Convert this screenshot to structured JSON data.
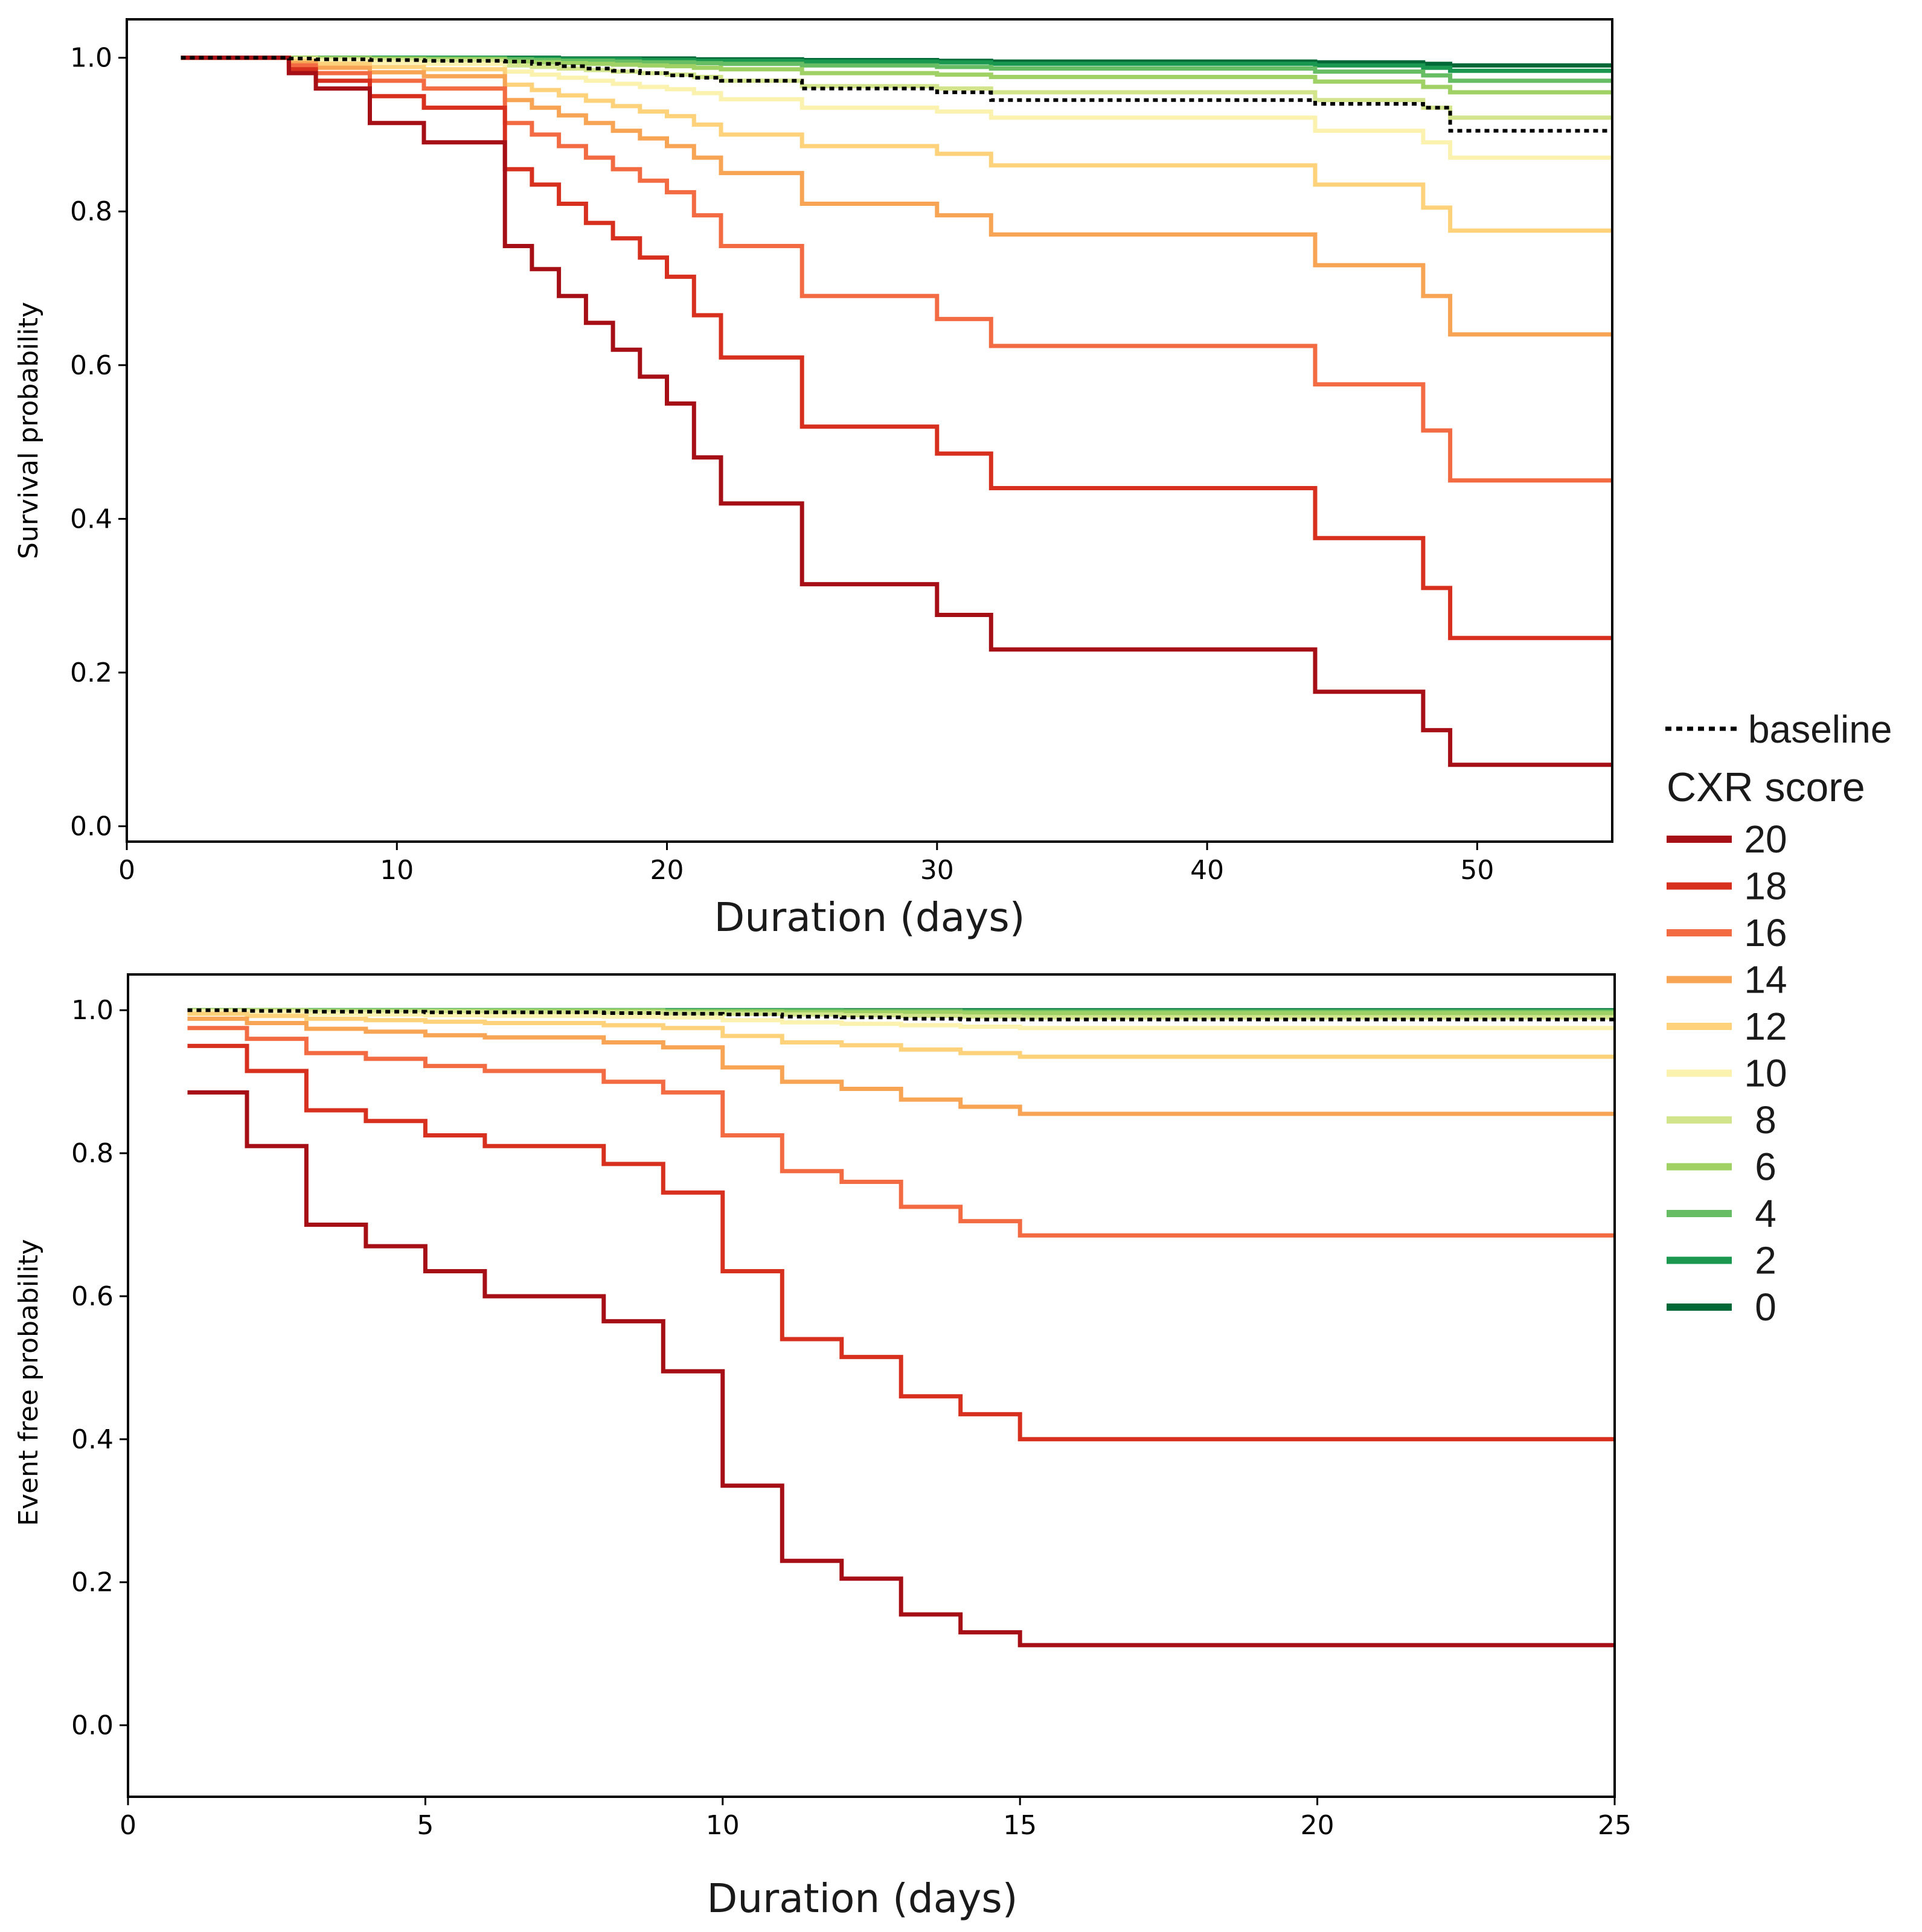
{
  "chart_data": [
    {
      "type": "line",
      "step": true,
      "xlabel": "Duration (days)",
      "ylabel": "Survival probability",
      "xlim": [
        0,
        55
      ],
      "ylim": [
        -0.02,
        1.05
      ],
      "xticks": [
        0,
        10,
        20,
        30,
        40,
        50
      ],
      "xtick_labels": [
        "0",
        "10",
        "20",
        "30",
        "40",
        "50"
      ],
      "yticks": [
        0.0,
        0.2,
        0.4,
        0.6,
        0.8,
        1.0
      ],
      "ytick_labels": [
        "0.0",
        "0.2",
        "0.4",
        "0.6",
        "0.8",
        "1.0"
      ],
      "x": [
        2,
        6,
        7,
        9,
        11,
        14,
        15,
        16,
        17,
        18,
        19,
        20,
        21,
        22,
        25,
        30,
        32,
        44,
        48,
        49,
        55
      ],
      "series": [
        {
          "name": "baseline",
          "color": "#000000",
          "dashed": true,
          "values": [
            1.0,
            0.999,
            0.998,
            0.997,
            0.996,
            0.995,
            0.992,
            0.989,
            0.986,
            0.983,
            0.98,
            0.977,
            0.974,
            0.97,
            0.96,
            0.955,
            0.945,
            0.94,
            0.935,
            0.905,
            0.905
          ]
        },
        {
          "name": "20",
          "color": "#a50f15",
          "values": [
            1.0,
            0.98,
            0.96,
            0.915,
            0.89,
            0.755,
            0.725,
            0.69,
            0.655,
            0.62,
            0.585,
            0.55,
            0.48,
            0.42,
            0.315,
            0.275,
            0.23,
            0.175,
            0.125,
            0.08,
            0.08
          ]
        },
        {
          "name": "18",
          "color": "#d7301f",
          "values": [
            1.0,
            0.985,
            0.97,
            0.95,
            0.935,
            0.855,
            0.835,
            0.81,
            0.785,
            0.765,
            0.74,
            0.715,
            0.665,
            0.61,
            0.52,
            0.485,
            0.44,
            0.375,
            0.31,
            0.245,
            0.245
          ]
        },
        {
          "name": "16",
          "color": "#f26b43",
          "values": [
            1.0,
            0.99,
            0.98,
            0.97,
            0.96,
            0.915,
            0.9,
            0.885,
            0.87,
            0.855,
            0.84,
            0.825,
            0.795,
            0.755,
            0.69,
            0.66,
            0.625,
            0.575,
            0.515,
            0.45,
            0.45
          ]
        },
        {
          "name": "14",
          "color": "#f8a455",
          "values": [
            1.0,
            0.993,
            0.987,
            0.981,
            0.976,
            0.945,
            0.935,
            0.925,
            0.915,
            0.905,
            0.895,
            0.885,
            0.87,
            0.85,
            0.81,
            0.795,
            0.77,
            0.73,
            0.69,
            0.64,
            0.64
          ]
        },
        {
          "name": "12",
          "color": "#fdd27a",
          "values": [
            1.0,
            0.996,
            0.992,
            0.988,
            0.985,
            0.965,
            0.958,
            0.951,
            0.944,
            0.937,
            0.93,
            0.924,
            0.913,
            0.9,
            0.885,
            0.875,
            0.86,
            0.835,
            0.805,
            0.775,
            0.775
          ]
        },
        {
          "name": "10",
          "color": "#fcf2b0",
          "values": [
            1.0,
            0.998,
            0.996,
            0.994,
            0.992,
            0.982,
            0.978,
            0.974,
            0.97,
            0.966,
            0.962,
            0.959,
            0.954,
            0.946,
            0.935,
            0.93,
            0.922,
            0.905,
            0.89,
            0.87,
            0.87
          ]
        },
        {
          "name": "8",
          "color": "#d2e48c",
          "values": [
            1.0,
            0.999,
            0.998,
            0.997,
            0.996,
            0.99,
            0.988,
            0.986,
            0.984,
            0.982,
            0.98,
            0.978,
            0.975,
            0.97,
            0.963,
            0.96,
            0.955,
            0.945,
            0.935,
            0.922,
            0.922
          ]
        },
        {
          "name": "6",
          "color": "#a0d164",
          "values": [
            1.0,
            1.0,
            0.999,
            0.999,
            0.998,
            0.995,
            0.994,
            0.993,
            0.992,
            0.991,
            0.99,
            0.989,
            0.987,
            0.985,
            0.98,
            0.978,
            0.975,
            0.969,
            0.962,
            0.955,
            0.955
          ]
        },
        {
          "name": "4",
          "color": "#66bd63",
          "values": [
            1.0,
            1.0,
            1.0,
            0.999,
            0.999,
            0.998,
            0.997,
            0.996,
            0.996,
            0.995,
            0.994,
            0.994,
            0.993,
            0.992,
            0.99,
            0.988,
            0.986,
            0.982,
            0.977,
            0.97,
            0.97
          ]
        },
        {
          "name": "2",
          "color": "#1a9850",
          "values": [
            1.0,
            1.0,
            1.0,
            1.0,
            1.0,
            0.999,
            0.999,
            0.998,
            0.998,
            0.998,
            0.997,
            0.997,
            0.996,
            0.996,
            0.995,
            0.994,
            0.992,
            0.99,
            0.987,
            0.983,
            0.983
          ]
        },
        {
          "name": "0",
          "color": "#006837",
          "values": [
            1.0,
            1.0,
            1.0,
            1.0,
            1.0,
            1.0,
            1.0,
            0.999,
            0.999,
            0.999,
            0.999,
            0.999,
            0.998,
            0.998,
            0.997,
            0.996,
            0.995,
            0.994,
            0.992,
            0.99,
            0.99
          ]
        }
      ]
    },
    {
      "type": "line",
      "step": true,
      "xlabel": "Duration (days)",
      "ylabel": "Event free probability",
      "xlim": [
        0,
        25
      ],
      "ylim": [
        -0.1,
        1.05
      ],
      "xticks": [
        0,
        5,
        10,
        15,
        20,
        25
      ],
      "xtick_labels": [
        "0",
        "5",
        "10",
        "15",
        "20",
        "25"
      ],
      "yticks": [
        0.0,
        0.2,
        0.4,
        0.6,
        0.8,
        1.0
      ],
      "ytick_labels": [
        "0.0",
        "0.2",
        "0.4",
        "0.6",
        "0.8",
        "1.0"
      ],
      "x": [
        1,
        2,
        3,
        4,
        5,
        6,
        8,
        9,
        10,
        11,
        12,
        13,
        14,
        15,
        25
      ],
      "series": [
        {
          "name": "baseline",
          "color": "#000000",
          "dashed": true,
          "values": [
            1.0,
            0.999,
            0.998,
            0.998,
            0.997,
            0.997,
            0.996,
            0.995,
            0.994,
            0.991,
            0.99,
            0.988,
            0.987,
            0.987,
            0.987
          ]
        },
        {
          "name": "20",
          "color": "#a50f15",
          "values": [
            0.885,
            0.81,
            0.7,
            0.67,
            0.635,
            0.6,
            0.565,
            0.495,
            0.335,
            0.23,
            0.205,
            0.155,
            0.13,
            0.112,
            0.112
          ]
        },
        {
          "name": "18",
          "color": "#d7301f",
          "values": [
            0.95,
            0.915,
            0.86,
            0.845,
            0.825,
            0.81,
            0.785,
            0.745,
            0.635,
            0.54,
            0.515,
            0.46,
            0.435,
            0.4,
            0.4
          ]
        },
        {
          "name": "16",
          "color": "#f26b43",
          "values": [
            0.975,
            0.96,
            0.94,
            0.932,
            0.922,
            0.915,
            0.9,
            0.885,
            0.825,
            0.775,
            0.76,
            0.725,
            0.705,
            0.685,
            0.685
          ]
        },
        {
          "name": "14",
          "color": "#f8a455",
          "values": [
            0.988,
            0.982,
            0.974,
            0.97,
            0.965,
            0.962,
            0.955,
            0.948,
            0.92,
            0.9,
            0.89,
            0.875,
            0.865,
            0.855,
            0.855
          ]
        },
        {
          "name": "12",
          "color": "#fdd27a",
          "values": [
            0.995,
            0.992,
            0.988,
            0.986,
            0.984,
            0.982,
            0.979,
            0.975,
            0.964,
            0.955,
            0.951,
            0.945,
            0.94,
            0.935,
            0.935
          ]
        },
        {
          "name": "10",
          "color": "#fcf2b0",
          "values": [
            0.998,
            0.997,
            0.995,
            0.994,
            0.993,
            0.992,
            0.991,
            0.99,
            0.986,
            0.983,
            0.981,
            0.979,
            0.977,
            0.975,
            0.975
          ]
        },
        {
          "name": "8",
          "color": "#d2e48c",
          "values": [
            0.999,
            0.999,
            0.998,
            0.998,
            0.998,
            0.997,
            0.997,
            0.996,
            0.995,
            0.994,
            0.993,
            0.992,
            0.991,
            0.99,
            0.99
          ]
        },
        {
          "name": "6",
          "color": "#a0d164",
          "values": [
            1.0,
            1.0,
            0.999,
            0.999,
            0.999,
            0.999,
            0.999,
            0.998,
            0.998,
            0.997,
            0.997,
            0.997,
            0.996,
            0.996,
            0.996
          ]
        },
        {
          "name": "4",
          "color": "#66bd63",
          "values": [
            1.0,
            1.0,
            1.0,
            1.0,
            1.0,
            1.0,
            1.0,
            0.999,
            0.999,
            0.999,
            0.999,
            0.999,
            0.998,
            0.998,
            0.998
          ]
        },
        {
          "name": "2",
          "color": "#1a9850",
          "values": [
            1.0,
            1.0,
            1.0,
            1.0,
            1.0,
            1.0,
            1.0,
            1.0,
            1.0,
            1.0,
            0.999,
            0.999,
            0.999,
            0.999,
            0.999
          ]
        },
        {
          "name": "0",
          "color": "#006837",
          "values": [
            1.0,
            1.0,
            1.0,
            1.0,
            1.0,
            1.0,
            1.0,
            1.0,
            1.0,
            1.0,
            1.0,
            1.0,
            1.0,
            1.0,
            1.0
          ]
        }
      ]
    }
  ],
  "legend": {
    "placement": "right",
    "baseline_label": "baseline",
    "title": "CXR score",
    "entries": [
      {
        "label": "20",
        "color": "#a50f15"
      },
      {
        "label": "18",
        "color": "#d7301f"
      },
      {
        "label": "16",
        "color": "#f26b43"
      },
      {
        "label": "14",
        "color": "#f8a455"
      },
      {
        "label": "12",
        "color": "#fdd27a"
      },
      {
        "label": "10",
        "color": "#fcf2b0"
      },
      {
        "label": "8",
        "color": "#d2e48c"
      },
      {
        "label": "6",
        "color": "#a0d164"
      },
      {
        "label": "4",
        "color": "#66bd63"
      },
      {
        "label": "2",
        "color": "#1a9850"
      },
      {
        "label": "0",
        "color": "#006837"
      }
    ]
  }
}
